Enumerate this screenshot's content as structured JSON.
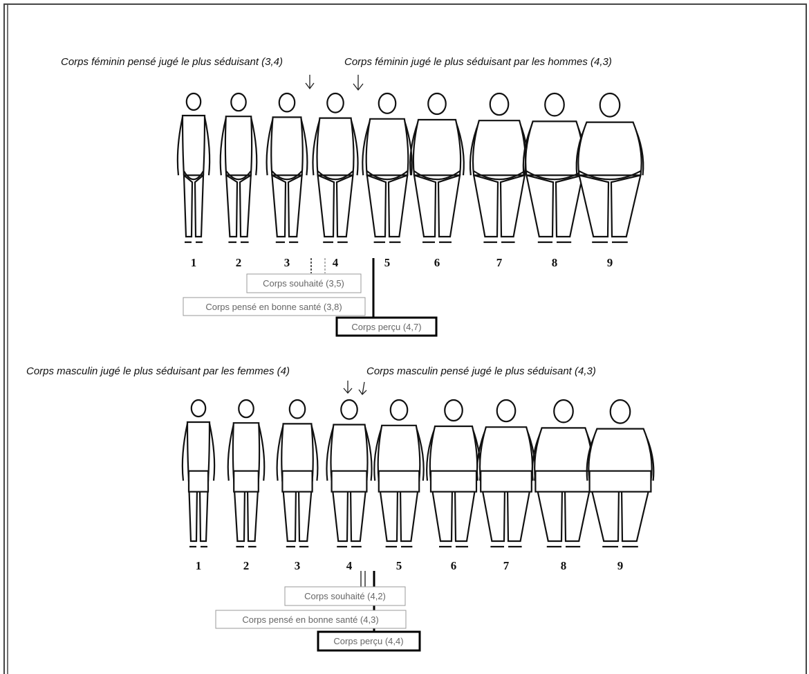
{
  "female": {
    "annotations": [
      "Corps féminin pensé jugé le plus séduisant (3,4)",
      "Corps féminin jugé le plus séduisant par les hommes (4,3)"
    ],
    "scale": [
      "1",
      "2",
      "3",
      "4",
      "5",
      "6",
      "7",
      "8",
      "9"
    ],
    "boxes": [
      "Corps souhaité (3,5)",
      "Corps pensé en bonne santé (3,8)",
      "Corps perçu (4,7)"
    ]
  },
  "male": {
    "annotations": [
      "Corps masculin jugé le plus séduisant par les femmes (4)",
      "Corps masculin pensé jugé le plus séduisant (4,3)"
    ],
    "scale": [
      "1",
      "2",
      "3",
      "4",
      "5",
      "6",
      "7",
      "8",
      "9"
    ],
    "boxes": [
      "Corps souhaité (4,2)",
      "Corps pensé en bonne santé (4,3)",
      "Corps perçu (4,4)"
    ]
  }
}
